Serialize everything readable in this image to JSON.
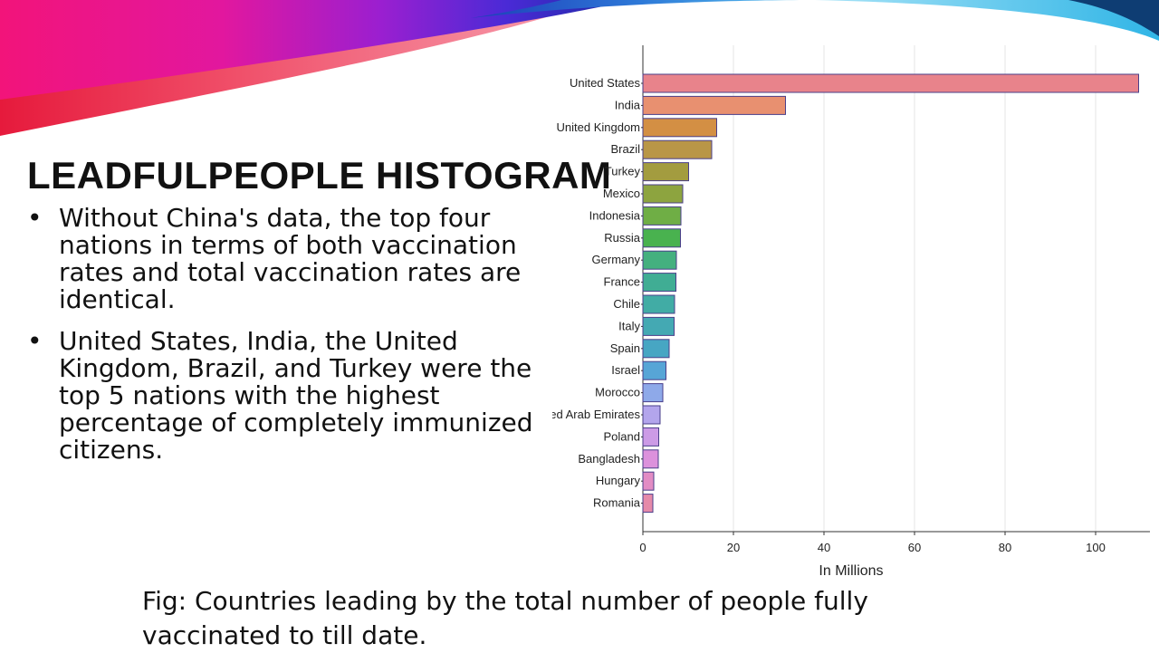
{
  "slide": {
    "title": "LEADFULPEOPLE HISTOGRAM",
    "bullets": [
      "Without China's data, the top four nations in terms of both vaccination rates and total vaccination rates are identical.",
      "United States, India, the United Kingdom, Brazil, and Turkey were the top 5 nations with the highest percentage of completely immunized citizens."
    ],
    "bullet_char": "•",
    "caption": "Fig: Countries leading by the total number of people fully vaccinated to till date."
  },
  "chart_data": {
    "type": "bar",
    "orientation": "horizontal",
    "categories": [
      "United States",
      "India",
      "United Kingdom",
      "Brazil",
      "Turkey",
      "Mexico",
      "Indonesia",
      "Russia",
      "Germany",
      "France",
      "Chile",
      "Italy",
      "Spain",
      "Israel",
      "Morocco",
      "United Arab Emirates",
      "Poland",
      "Bangladesh",
      "Hungary",
      "Romania"
    ],
    "values": [
      109.5,
      31.5,
      16.3,
      15.2,
      10.1,
      8.8,
      8.4,
      8.3,
      7.4,
      7.3,
      7.0,
      6.9,
      5.8,
      5.1,
      4.4,
      3.8,
      3.5,
      3.4,
      2.4,
      2.2
    ],
    "colors": [
      "#e8838b",
      "#e89070",
      "#d38f44",
      "#b99647",
      "#a39c3f",
      "#8da43f",
      "#6fae45",
      "#49b24f",
      "#44b07f",
      "#40ad94",
      "#41aca5",
      "#44a9b3",
      "#47a6c3",
      "#57a5d6",
      "#8ea9e9",
      "#b3a5ec",
      "#cc9be6",
      "#dc91dc",
      "#e28cc4",
      "#e58aa9"
    ],
    "xlabel": "In Millions",
    "ylabel": "",
    "xlim": [
      0,
      112
    ],
    "xticks": [
      0,
      20,
      40,
      60,
      80,
      100
    ],
    "grid": true
  }
}
